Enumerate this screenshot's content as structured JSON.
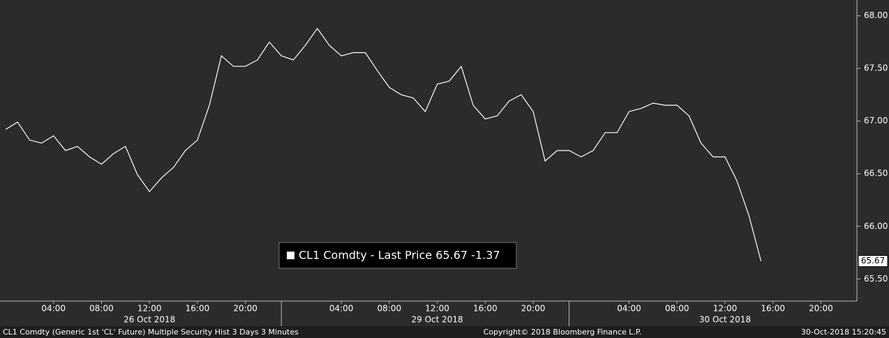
{
  "chart_data": {
    "type": "line",
    "xlim": [
      "2018-10-26T00:00",
      "2018-10-30T23:00"
    ],
    "ylim": [
      65.29,
      68.15
    ],
    "yticks": [
      {
        "value": 65.5,
        "label": "65.50"
      },
      {
        "value": 66,
        "label": "66.00"
      },
      {
        "value": 66.5,
        "label": "66.50"
      },
      {
        "value": 67,
        "label": "67.00"
      },
      {
        "value": 67.5,
        "label": "67.50"
      },
      {
        "value": 68,
        "label": "68.00"
      }
    ],
    "xticks": [
      {
        "value": "2018-10-26T04:00",
        "label": "04:00"
      },
      {
        "value": "2018-10-26T08:00",
        "label": "08:00"
      },
      {
        "value": "2018-10-26T12:00",
        "label": "12:00"
      },
      {
        "value": "2018-10-26T16:00",
        "label": "16:00"
      },
      {
        "value": "2018-10-26T20:00",
        "label": "20:00"
      },
      {
        "value": "2018-10-29T04:00",
        "label": "04:00"
      },
      {
        "value": "2018-10-29T08:00",
        "label": "08:00"
      },
      {
        "value": "2018-10-29T12:00",
        "label": "12:00"
      },
      {
        "value": "2018-10-29T16:00",
        "label": "16:00"
      },
      {
        "value": "2018-10-29T20:00",
        "label": "20:00"
      },
      {
        "value": "2018-10-30T04:00",
        "label": "04:00"
      },
      {
        "value": "2018-10-30T08:00",
        "label": "08:00"
      },
      {
        "value": "2018-10-30T12:00",
        "label": "12:00"
      },
      {
        "value": "2018-10-30T16:00",
        "label": "16:00"
      },
      {
        "value": "2018-10-30T20:00",
        "label": "20:00"
      }
    ],
    "day_labels": [
      "26 Oct 2018",
      "29 Oct 2018",
      "30 Oct 2018"
    ],
    "x": [
      "2018-10-26T00:00",
      "2018-10-26T01:00",
      "2018-10-26T02:00",
      "2018-10-26T03:00",
      "2018-10-26T04:00",
      "2018-10-26T05:00",
      "2018-10-26T06:00",
      "2018-10-26T07:00",
      "2018-10-26T08:00",
      "2018-10-26T09:00",
      "2018-10-26T10:00",
      "2018-10-26T11:00",
      "2018-10-26T12:00",
      "2018-10-26T13:00",
      "2018-10-26T14:00",
      "2018-10-26T15:00",
      "2018-10-26T16:00",
      "2018-10-26T17:00",
      "2018-10-26T18:00",
      "2018-10-26T19:00",
      "2018-10-26T20:00",
      "2018-10-26T21:00",
      "2018-10-26T22:00",
      "2018-10-26T23:00",
      "2018-10-29T00:00",
      "2018-10-29T01:00",
      "2018-10-29T02:00",
      "2018-10-29T03:00",
      "2018-10-29T04:00",
      "2018-10-29T05:00",
      "2018-10-29T06:00",
      "2018-10-29T07:00",
      "2018-10-29T08:00",
      "2018-10-29T09:00",
      "2018-10-29T10:00",
      "2018-10-29T11:00",
      "2018-10-29T12:00",
      "2018-10-29T13:00",
      "2018-10-29T14:00",
      "2018-10-29T15:00",
      "2018-10-29T16:00",
      "2018-10-29T17:00",
      "2018-10-29T18:00",
      "2018-10-29T19:00",
      "2018-10-29T20:00",
      "2018-10-29T21:00",
      "2018-10-29T22:00",
      "2018-10-29T23:00",
      "2018-10-30T00:00",
      "2018-10-30T01:00",
      "2018-10-30T02:00",
      "2018-10-30T03:00",
      "2018-10-30T04:00",
      "2018-10-30T05:00",
      "2018-10-30T06:00",
      "2018-10-30T07:00",
      "2018-10-30T08:00",
      "2018-10-30T09:00",
      "2018-10-30T10:00",
      "2018-10-30T11:00",
      "2018-10-30T12:00",
      "2018-10-30T13:00",
      "2018-10-30T14:00",
      "2018-10-30T15:00"
    ],
    "series": [
      {
        "name": "CL1 Comdty - Last Price 65.67  -1.37",
        "color": "#ffffff",
        "values": [
          66.92,
          66.99,
          66.82,
          66.79,
          66.86,
          66.72,
          66.76,
          66.66,
          66.59,
          66.69,
          66.76,
          66.49,
          66.33,
          66.46,
          66.56,
          66.72,
          66.82,
          67.15,
          67.62,
          67.52,
          67.52,
          67.58,
          67.75,
          67.62,
          67.58,
          67.72,
          67.88,
          67.72,
          67.62,
          67.65,
          67.65,
          67.48,
          67.32,
          67.25,
          67.22,
          67.09,
          67.35,
          67.38,
          67.52,
          67.15,
          67.02,
          67.05,
          67.19,
          67.25,
          67.09,
          66.62,
          66.72,
          66.72,
          66.66,
          66.72,
          66.89,
          66.89,
          67.09,
          67.12,
          67.17,
          67.15,
          67.15,
          67.05,
          66.79,
          66.66,
          66.66,
          66.43,
          66.1,
          65.67
        ]
      }
    ],
    "footer": {
      "left": "CL1 Comdty (Generic 1st 'CL' Future) Multiple Security Hist   3 Days 3 Minutes",
      "center": "Copyright© 2018 Bloomberg Finance L.P.",
      "right": "30-Oct-2018 15:20:45"
    }
  }
}
